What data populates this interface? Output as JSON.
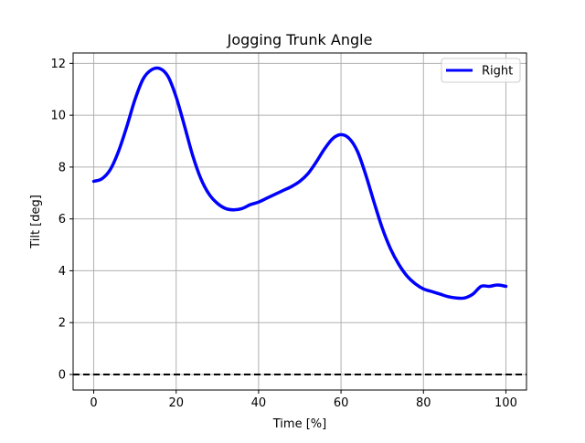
{
  "chart_data": {
    "type": "line",
    "title": "Jogging Trunk Angle",
    "xlabel": "Time [%]",
    "ylabel": "Tilt [deg]",
    "xlim": [
      -5,
      105
    ],
    "ylim": [
      -0.6,
      12.4
    ],
    "x_ticks": [
      0,
      20,
      40,
      60,
      80,
      100
    ],
    "y_ticks": [
      0,
      2,
      4,
      6,
      8,
      10,
      12
    ],
    "grid": true,
    "legend_position": "top-right",
    "reference_line": {
      "y": 0,
      "style": "dashed",
      "color": "#000000"
    },
    "series": [
      {
        "name": "Right",
        "color": "#0000ff",
        "x": [
          0,
          2,
          4,
          6,
          8,
          10,
          12,
          14,
          16,
          18,
          20,
          22,
          24,
          26,
          28,
          30,
          32,
          34,
          36,
          38,
          40,
          42,
          44,
          46,
          48,
          50,
          52,
          54,
          56,
          58,
          60,
          62,
          64,
          66,
          68,
          70,
          72,
          74,
          76,
          78,
          80,
          82,
          84,
          86,
          88,
          90,
          92,
          94,
          96,
          98,
          100
        ],
        "y": [
          7.45,
          7.55,
          7.9,
          8.6,
          9.55,
          10.6,
          11.4,
          11.75,
          11.8,
          11.5,
          10.7,
          9.6,
          8.45,
          7.55,
          6.95,
          6.6,
          6.4,
          6.35,
          6.4,
          6.55,
          6.65,
          6.8,
          6.95,
          7.1,
          7.25,
          7.45,
          7.75,
          8.2,
          8.7,
          9.1,
          9.25,
          9.1,
          8.6,
          7.7,
          6.65,
          5.65,
          4.85,
          4.25,
          3.8,
          3.5,
          3.3,
          3.2,
          3.1,
          3.0,
          2.95,
          2.95,
          3.1,
          3.4,
          3.4,
          3.45,
          3.4
        ]
      }
    ]
  }
}
